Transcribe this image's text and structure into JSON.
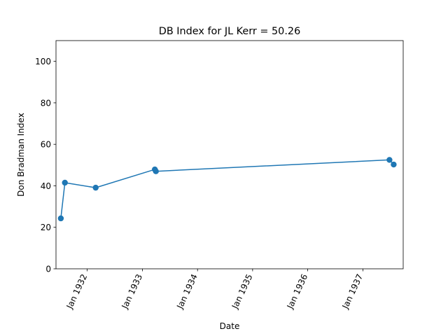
{
  "chart_data": {
    "type": "line",
    "title": "DB Index for JL Kerr = 50.26",
    "xlabel": "Date",
    "ylabel": "Don Bradman Index",
    "ylim": [
      0,
      110
    ],
    "xlim": [
      "1931-06-08",
      "1937-09-25"
    ],
    "yticks": [
      0,
      20,
      40,
      60,
      80,
      100
    ],
    "xticks": [
      {
        "date": "1932-01-01",
        "label": "Jan 1932"
      },
      {
        "date": "1933-01-01",
        "label": "Jan 1933"
      },
      {
        "date": "1934-01-01",
        "label": "Jan 1934"
      },
      {
        "date": "1935-01-01",
        "label": "Jan 1935"
      },
      {
        "date": "1936-01-01",
        "label": "Jan 1936"
      },
      {
        "date": "1937-01-01",
        "label": "Jan 1937"
      }
    ],
    "grid": false,
    "color": "#1f77b4",
    "series": [
      {
        "x": [
          "1931-07-10",
          "1931-08-06",
          "1932-02-26",
          "1933-03-24",
          "1933-03-31",
          "1937-06-26",
          "1937-07-24"
        ],
        "y": [
          24.3,
          41.5,
          39.1,
          47.9,
          47.0,
          52.5,
          50.26
        ]
      }
    ]
  }
}
